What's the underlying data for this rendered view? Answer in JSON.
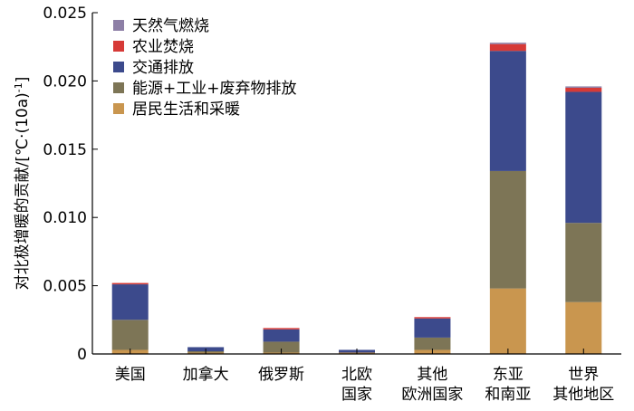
{
  "chart_data": {
    "type": "bar",
    "stacked": true,
    "ylabel": "对北极增暖的贡献/[℃·(10a)-1]",
    "ylabel_main": "对北极增暖的贡献/[℃·(10a)",
    "ylabel_sup": "-1",
    "ylabel_end": "]",
    "xlabel": "",
    "ylim": [
      0,
      0.025
    ],
    "yticks": [
      "0",
      "0.005",
      "0.010",
      "0.015",
      "0.020",
      "0.025"
    ],
    "ytick_values": [
      0,
      0.005,
      0.01,
      0.015,
      0.02,
      0.025
    ],
    "categories": [
      [
        "美国"
      ],
      [
        "加拿大"
      ],
      [
        "俄罗斯"
      ],
      [
        "北欧",
        "国家"
      ],
      [
        "其他",
        "欧洲国家"
      ],
      [
        "东亚",
        "和南亚"
      ],
      [
        "世界",
        "其他地区"
      ]
    ],
    "legend_position": "top-left",
    "series": [
      {
        "name": "居民生活和采暖",
        "color": "#c9964f",
        "values": [
          0.0003,
          0.0001,
          0.0001,
          0.0001,
          0.0003,
          0.0048,
          0.0038
        ]
      },
      {
        "name": "能源+工业+废弃物排放",
        "color": "#7d7556",
        "values": [
          0.0022,
          0.0001,
          0.0008,
          0.0,
          0.0009,
          0.0086,
          0.0058
        ]
      },
      {
        "name": "交通排放",
        "color": "#3c4a8c",
        "values": [
          0.0026,
          0.0003,
          0.0009,
          0.0002,
          0.0014,
          0.0088,
          0.0096
        ]
      },
      {
        "name": "农业焚烧",
        "color": "#d63a37",
        "values": [
          0.0001,
          0.0,
          0.0001,
          0.0,
          0.0001,
          0.0005,
          0.0003
        ]
      },
      {
        "name": "天然气燃烧",
        "color": "#8d7fa6",
        "values": [
          0.0,
          0.0,
          0.0,
          0.0,
          0.0,
          0.0001,
          0.0001
        ]
      }
    ],
    "legend_order": [
      4,
      3,
      2,
      1,
      0
    ]
  }
}
